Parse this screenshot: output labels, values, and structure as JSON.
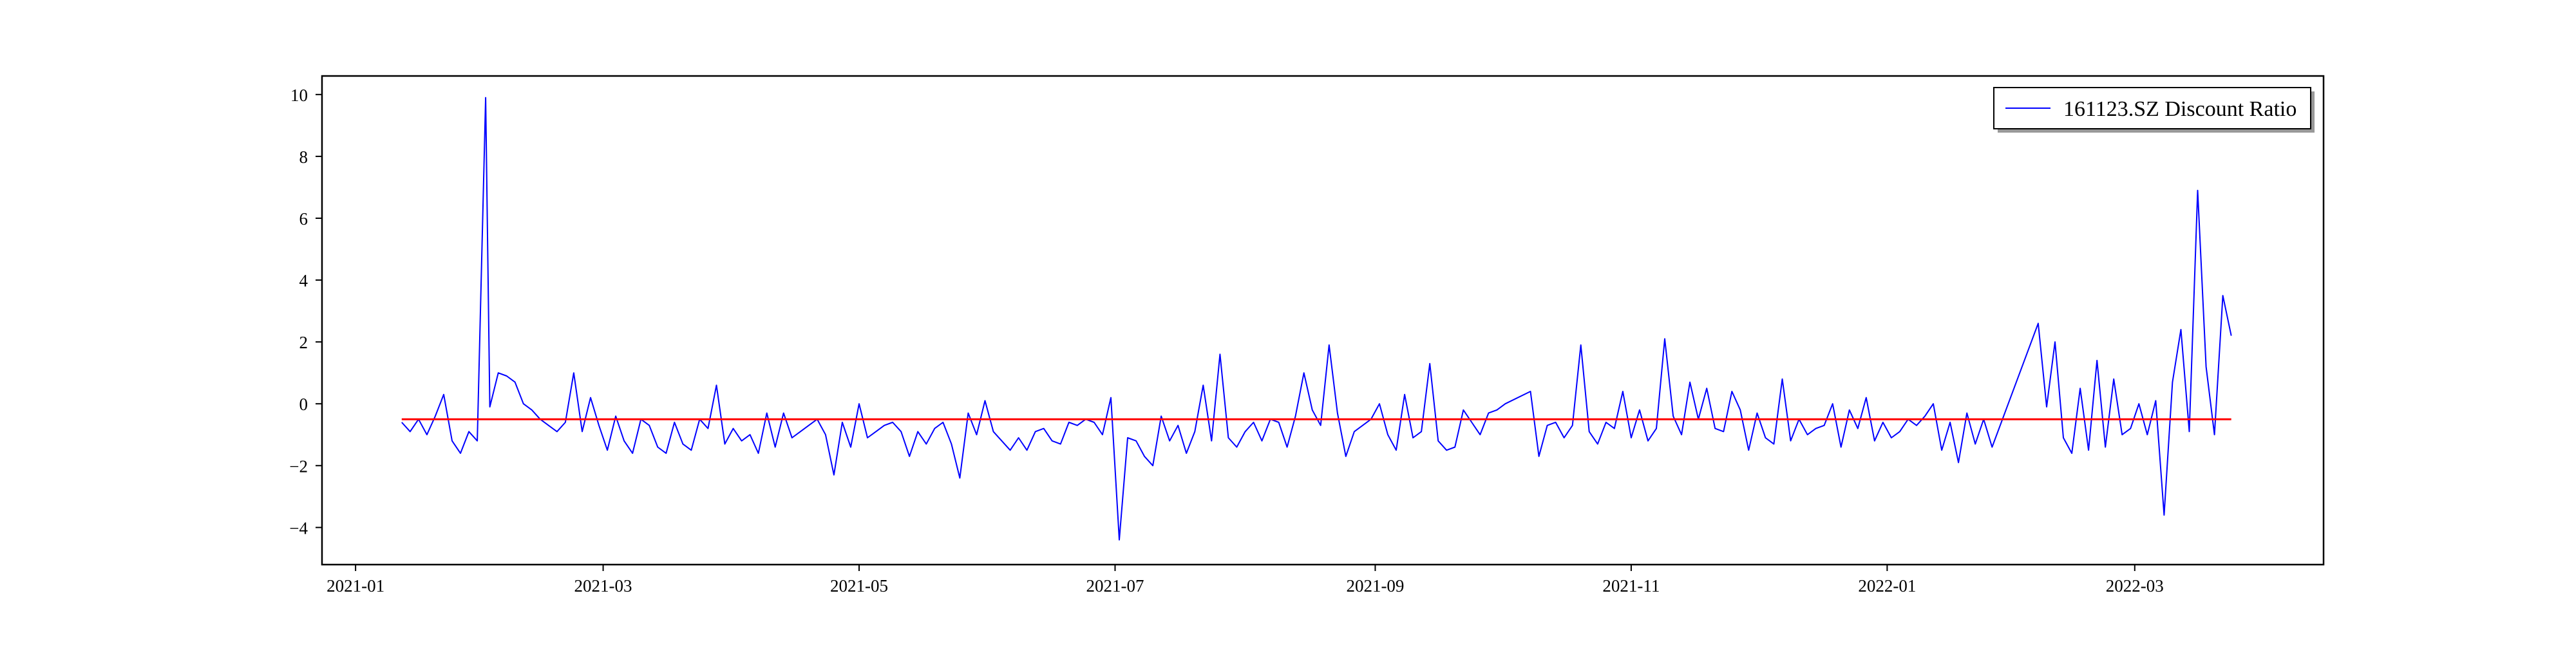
{
  "chart_data": {
    "type": "line",
    "title": "",
    "xlabel": "",
    "ylabel": "",
    "x_type": "date",
    "xlim": [
      "2020-12-24",
      "2022-04-15"
    ],
    "ylim": [
      -5.2,
      10.6
    ],
    "grid": false,
    "legend_position": "top-right",
    "x_ticks": [
      "2021-01",
      "2021-03",
      "2021-05",
      "2021-07",
      "2021-09",
      "2021-11",
      "2022-01",
      "2022-03"
    ],
    "x_tick_dates": [
      "2021-01-01",
      "2021-03-01",
      "2021-05-01",
      "2021-07-01",
      "2021-09-01",
      "2021-11-01",
      "2022-01-01",
      "2022-03-01"
    ],
    "y_ticks": [
      -4,
      -2,
      0,
      2,
      4,
      6,
      8,
      10
    ],
    "y_tick_labels": [
      "−4",
      "−2",
      "0",
      "2",
      "4",
      "6",
      "8",
      "10"
    ],
    "series": [
      {
        "name": "161123.SZ Discount Ratio",
        "color": "#0000ff",
        "x": [
          "2021-01-12",
          "2021-01-14",
          "2021-01-16",
          "2021-01-18",
          "2021-01-20",
          "2021-01-22",
          "2021-01-24",
          "2021-01-26",
          "2021-01-28",
          "2021-01-30",
          "2021-02-01",
          "2021-02-02",
          "2021-02-04",
          "2021-02-06",
          "2021-02-08",
          "2021-02-10",
          "2021-02-12",
          "2021-02-14",
          "2021-02-16",
          "2021-02-18",
          "2021-02-20",
          "2021-02-22",
          "2021-02-24",
          "2021-02-26",
          "2021-02-28",
          "2021-03-02",
          "2021-03-04",
          "2021-03-06",
          "2021-03-08",
          "2021-03-10",
          "2021-03-12",
          "2021-03-14",
          "2021-03-16",
          "2021-03-18",
          "2021-03-20",
          "2021-03-22",
          "2021-03-24",
          "2021-03-26",
          "2021-03-28",
          "2021-03-30",
          "2021-04-01",
          "2021-04-03",
          "2021-04-05",
          "2021-04-07",
          "2021-04-09",
          "2021-04-11",
          "2021-04-13",
          "2021-04-15",
          "2021-04-17",
          "2021-04-19",
          "2021-04-21",
          "2021-04-23",
          "2021-04-25",
          "2021-04-27",
          "2021-04-29",
          "2021-05-01",
          "2021-05-03",
          "2021-05-05",
          "2021-05-07",
          "2021-05-09",
          "2021-05-11",
          "2021-05-13",
          "2021-05-15",
          "2021-05-17",
          "2021-05-19",
          "2021-05-21",
          "2021-05-23",
          "2021-05-25",
          "2021-05-27",
          "2021-05-29",
          "2021-05-31",
          "2021-06-02",
          "2021-06-04",
          "2021-06-06",
          "2021-06-08",
          "2021-06-10",
          "2021-06-12",
          "2021-06-14",
          "2021-06-16",
          "2021-06-18",
          "2021-06-20",
          "2021-06-22",
          "2021-06-24",
          "2021-06-26",
          "2021-06-28",
          "2021-06-30",
          "2021-07-02",
          "2021-07-04",
          "2021-07-06",
          "2021-07-08",
          "2021-07-10",
          "2021-07-12",
          "2021-07-14",
          "2021-07-16",
          "2021-07-18",
          "2021-07-20",
          "2021-07-22",
          "2021-07-24",
          "2021-07-26",
          "2021-07-28",
          "2021-07-30",
          "2021-08-01",
          "2021-08-03",
          "2021-08-05",
          "2021-08-07",
          "2021-08-09",
          "2021-08-11",
          "2021-08-13",
          "2021-08-15",
          "2021-08-17",
          "2021-08-19",
          "2021-08-21",
          "2021-08-23",
          "2021-08-25",
          "2021-08-27",
          "2021-08-29",
          "2021-08-31",
          "2021-09-02",
          "2021-09-04",
          "2021-09-06",
          "2021-09-08",
          "2021-09-10",
          "2021-09-12",
          "2021-09-14",
          "2021-09-16",
          "2021-09-18",
          "2021-09-20",
          "2021-09-22",
          "2021-09-24",
          "2021-09-26",
          "2021-09-28",
          "2021-09-30",
          "2021-10-02",
          "2021-10-08",
          "2021-10-10",
          "2021-10-12",
          "2021-10-14",
          "2021-10-16",
          "2021-10-18",
          "2021-10-20",
          "2021-10-22",
          "2021-10-24",
          "2021-10-26",
          "2021-10-28",
          "2021-10-30",
          "2021-11-01",
          "2021-11-03",
          "2021-11-05",
          "2021-11-07",
          "2021-11-09",
          "2021-11-11",
          "2021-11-13",
          "2021-11-15",
          "2021-11-17",
          "2021-11-19",
          "2021-11-21",
          "2021-11-23",
          "2021-11-25",
          "2021-11-27",
          "2021-11-29",
          "2021-12-01",
          "2021-12-03",
          "2021-12-05",
          "2021-12-07",
          "2021-12-09",
          "2021-12-11",
          "2021-12-13",
          "2021-12-15",
          "2021-12-17",
          "2021-12-19",
          "2021-12-21",
          "2021-12-23",
          "2021-12-25",
          "2021-12-27",
          "2021-12-29",
          "2021-12-31",
          "2022-01-02",
          "2022-01-04",
          "2022-01-06",
          "2022-01-08",
          "2022-01-10",
          "2022-01-12",
          "2022-01-14",
          "2022-01-16",
          "2022-01-18",
          "2022-01-20",
          "2022-01-22",
          "2022-01-24",
          "2022-01-26",
          "2022-02-06",
          "2022-02-08",
          "2022-02-10",
          "2022-02-12",
          "2022-02-14",
          "2022-02-16",
          "2022-02-18",
          "2022-02-20",
          "2022-02-22",
          "2022-02-24",
          "2022-02-26",
          "2022-02-28",
          "2022-03-02",
          "2022-03-04",
          "2022-03-06",
          "2022-03-08",
          "2022-03-10",
          "2022-03-12",
          "2022-03-14",
          "2022-03-16",
          "2022-03-18",
          "2022-03-20",
          "2022-03-22",
          "2022-03-24"
        ],
        "values": [
          -0.6,
          -0.9,
          -0.5,
          -1.0,
          -0.4,
          0.3,
          -1.2,
          -1.6,
          -0.9,
          -1.2,
          9.9,
          -0.1,
          1.0,
          0.9,
          0.7,
          0.0,
          -0.2,
          -0.5,
          -0.7,
          -0.9,
          -0.6,
          1.0,
          -0.9,
          0.2,
          -0.7,
          -1.5,
          -0.4,
          -1.2,
          -1.6,
          -0.5,
          -0.7,
          -1.4,
          -1.6,
          -0.6,
          -1.3,
          -1.5,
          -0.5,
          -0.8,
          0.6,
          -1.3,
          -0.8,
          -1.2,
          -1.0,
          -1.6,
          -0.3,
          -1.4,
          -0.3,
          -1.1,
          -0.9,
          -0.7,
          -0.5,
          -1.0,
          -2.3,
          -0.6,
          -1.4,
          0.0,
          -1.1,
          -0.9,
          -0.7,
          -0.6,
          -0.9,
          -1.7,
          -0.9,
          -1.3,
          -0.8,
          -0.6,
          -1.3,
          -2.4,
          -0.3,
          -1.0,
          0.1,
          -0.9,
          -1.2,
          -1.5,
          -1.1,
          -1.5,
          -0.9,
          -0.8,
          -1.2,
          -1.3,
          -0.6,
          -0.7,
          -0.5,
          -0.6,
          -1.0,
          0.2,
          -4.4,
          -1.1,
          -1.2,
          -1.7,
          -2.0,
          -0.4,
          -1.2,
          -0.7,
          -1.6,
          -0.9,
          0.6,
          -1.2,
          1.6,
          -1.1,
          -1.4,
          -0.9,
          -0.6,
          -1.2,
          -0.5,
          -0.6,
          -1.4,
          -0.4,
          1.0,
          -0.2,
          -0.7,
          1.9,
          -0.3,
          -1.7,
          -0.9,
          -0.7,
          -0.5,
          0.0,
          -1.0,
          -1.5,
          0.3,
          -1.1,
          -0.9,
          1.3,
          -1.2,
          -1.5,
          -1.4,
          -0.2,
          -0.6,
          -1.0,
          -0.3,
          -0.2,
          0.0,
          0.4,
          -1.7,
          -0.7,
          -0.6,
          -1.1,
          -0.7,
          1.9,
          -0.9,
          -1.3,
          -0.6,
          -0.8,
          0.4,
          -1.1,
          -0.2,
          -1.2,
          -0.8,
          2.1,
          -0.4,
          -1.0,
          0.7,
          -0.5,
          0.5,
          -0.8,
          -0.9,
          0.4,
          -0.2,
          -1.5,
          -0.3,
          -1.1,
          -1.3,
          0.8,
          -1.2,
          -0.5,
          -1.0,
          -0.8,
          -0.7,
          0.0,
          -1.4,
          -0.2,
          -0.8,
          0.2,
          -1.2,
          -0.6,
          -1.1,
          -0.9,
          -0.5,
          -0.7,
          -0.4,
          0.0,
          -1.5,
          -0.6,
          -1.9,
          -0.3,
          -1.3,
          -0.5,
          -1.4,
          2.6,
          -0.1,
          2.0,
          -1.1,
          -1.6,
          0.5,
          -1.5,
          1.4,
          -1.4,
          0.8,
          -1.0,
          -0.8,
          0.0,
          -1.0,
          0.1,
          -3.6,
          0.7,
          2.4,
          -0.9,
          6.9,
          1.2,
          -1.0,
          3.5,
          2.2
        ]
      },
      {
        "name": "",
        "color": "#ff0000",
        "x": [
          "2021-01-12",
          "2022-03-24"
        ],
        "values": [
          -0.5,
          -0.5
        ]
      }
    ]
  }
}
